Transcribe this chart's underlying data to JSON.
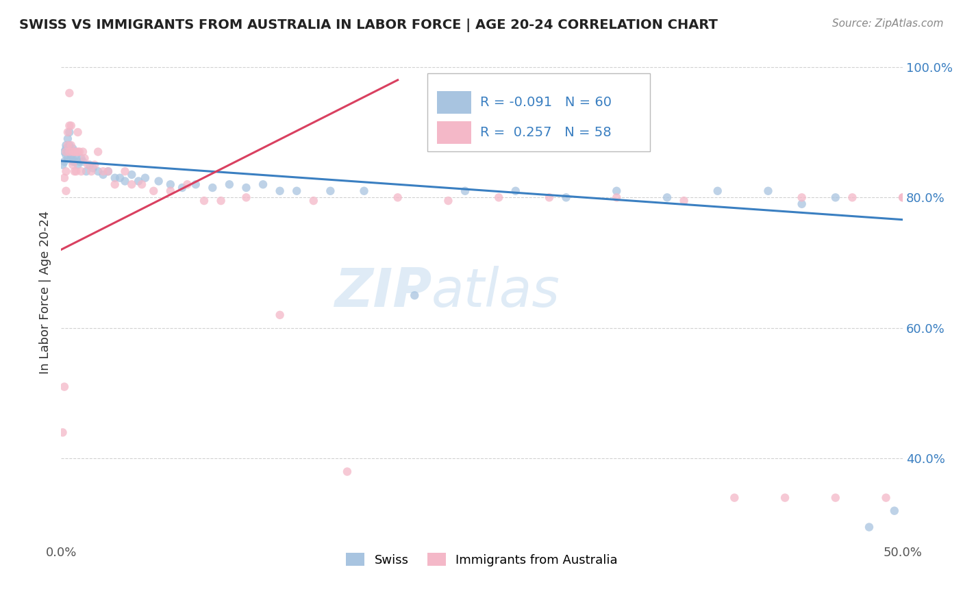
{
  "title": "SWISS VS IMMIGRANTS FROM AUSTRALIA IN LABOR FORCE | AGE 20-24 CORRELATION CHART",
  "source": "Source: ZipAtlas.com",
  "ylabel": "In Labor Force | Age 20-24",
  "xlim": [
    0.0,
    0.5
  ],
  "ylim": [
    0.27,
    1.04
  ],
  "swiss_R": -0.091,
  "swiss_N": 60,
  "aus_R": 0.257,
  "aus_N": 58,
  "swiss_color": "#a8c4e0",
  "aus_color": "#f4b8c8",
  "swiss_line_color": "#3a7fc1",
  "aus_line_color": "#d94060",
  "background_color": "#ffffff",
  "grid_color": "#cccccc",
  "swiss_x": [
    0.001,
    0.002,
    0.002,
    0.003,
    0.003,
    0.003,
    0.004,
    0.004,
    0.004,
    0.005,
    0.005,
    0.005,
    0.006,
    0.006,
    0.007,
    0.007,
    0.007,
    0.008,
    0.008,
    0.009,
    0.01,
    0.011,
    0.012,
    0.013,
    0.015,
    0.017,
    0.019,
    0.022,
    0.025,
    0.028,
    0.032,
    0.035,
    0.038,
    0.042,
    0.046,
    0.05,
    0.058,
    0.065,
    0.072,
    0.08,
    0.09,
    0.1,
    0.11,
    0.12,
    0.13,
    0.14,
    0.16,
    0.18,
    0.21,
    0.24,
    0.27,
    0.3,
    0.33,
    0.36,
    0.39,
    0.42,
    0.44,
    0.46,
    0.48,
    0.495
  ],
  "swiss_y": [
    0.85,
    0.87,
    0.855,
    0.88,
    0.865,
    0.875,
    0.89,
    0.87,
    0.86,
    0.9,
    0.87,
    0.88,
    0.86,
    0.87,
    0.855,
    0.875,
    0.86,
    0.87,
    0.855,
    0.865,
    0.85,
    0.855,
    0.86,
    0.855,
    0.84,
    0.85,
    0.845,
    0.84,
    0.835,
    0.84,
    0.83,
    0.83,
    0.825,
    0.835,
    0.825,
    0.83,
    0.825,
    0.82,
    0.815,
    0.82,
    0.815,
    0.82,
    0.815,
    0.82,
    0.81,
    0.81,
    0.81,
    0.81,
    0.65,
    0.81,
    0.81,
    0.8,
    0.81,
    0.8,
    0.81,
    0.81,
    0.79,
    0.8,
    0.295,
    0.32
  ],
  "aus_x": [
    0.001,
    0.002,
    0.002,
    0.003,
    0.003,
    0.003,
    0.004,
    0.004,
    0.005,
    0.005,
    0.005,
    0.006,
    0.006,
    0.007,
    0.007,
    0.008,
    0.008,
    0.009,
    0.009,
    0.01,
    0.01,
    0.011,
    0.012,
    0.013,
    0.014,
    0.016,
    0.018,
    0.02,
    0.022,
    0.025,
    0.028,
    0.032,
    0.038,
    0.042,
    0.048,
    0.055,
    0.065,
    0.075,
    0.085,
    0.095,
    0.11,
    0.13,
    0.15,
    0.17,
    0.2,
    0.23,
    0.26,
    0.29,
    0.33,
    0.37,
    0.4,
    0.43,
    0.46,
    0.49,
    0.44,
    0.47,
    0.5,
    0.5
  ],
  "aus_y": [
    0.44,
    0.51,
    0.83,
    0.81,
    0.84,
    0.87,
    0.9,
    0.88,
    0.91,
    0.96,
    0.87,
    0.91,
    0.88,
    0.85,
    0.87,
    0.87,
    0.84,
    0.87,
    0.84,
    0.87,
    0.9,
    0.87,
    0.84,
    0.87,
    0.86,
    0.85,
    0.84,
    0.85,
    0.87,
    0.84,
    0.84,
    0.82,
    0.84,
    0.82,
    0.82,
    0.81,
    0.81,
    0.82,
    0.795,
    0.795,
    0.8,
    0.62,
    0.795,
    0.38,
    0.8,
    0.795,
    0.8,
    0.8,
    0.8,
    0.795,
    0.34,
    0.34,
    0.34,
    0.34,
    0.8,
    0.8,
    0.8,
    0.8
  ],
  "swiss_trend_x": [
    0.0,
    0.5
  ],
  "swiss_trend_y": [
    0.856,
    0.766
  ],
  "aus_trend_x": [
    0.0,
    0.2
  ],
  "aus_trend_y": [
    0.72,
    0.98
  ]
}
